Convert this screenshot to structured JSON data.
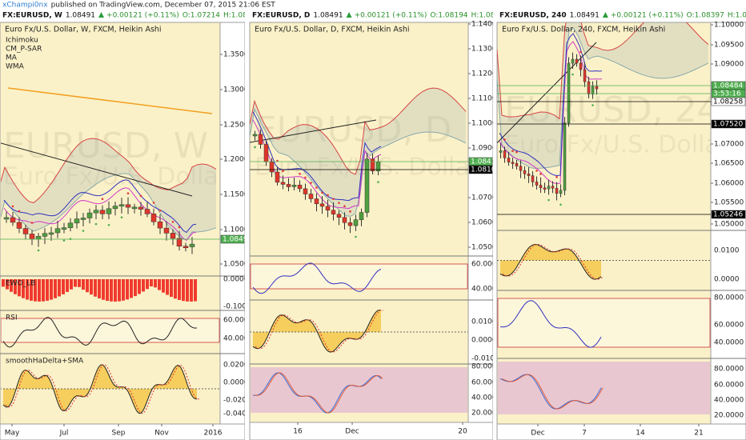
{
  "header": {
    "author": "xChampi0nx",
    "text": "published on TradingView.com, December 07, 2015 21:06 EST"
  },
  "panels": [
    {
      "quote": {
        "symbol": "FX:EURUSD, W",
        "last": "1.08491",
        "change": "+0.00121 (+0.11%)",
        "open": "O:1.07214",
        "high": "H:1.08860",
        "low": "L:1.07214",
        "close": "C:1.08"
      },
      "title": "Euro Fx/U.S. Dollar, W, FXCM, Heikin Ashi",
      "studies": [
        "Ichimoku",
        "CM_P-SAR",
        "MA",
        "WMA"
      ],
      "watermark": {
        "symbol": "EURUSD, W",
        "description": "Euro Fx/U.S. Dollar"
      },
      "price_axis": [
        "1.35000",
        "1.30000",
        "1.25000",
        "1.20000",
        "1.15000",
        "1.10000",
        "1.05000"
      ],
      "price_labels": [
        "1.08499"
      ],
      "panes": [
        {
          "name": "EWO_LB",
          "ticks": [
            "0.0000",
            "-0.1000"
          ]
        },
        {
          "name": "RSI",
          "ticks": [
            "60.0000",
            "40.0000"
          ]
        },
        {
          "name": "smoothHaDelta+SMA",
          "ticks": [
            "0.0200",
            "0.0000",
            "-0.0200",
            "-0.0400"
          ]
        }
      ],
      "time_axis": [
        "May",
        "Jul",
        "Sep",
        "Nov",
        "2016"
      ]
    },
    {
      "quote": {
        "symbol": "FX:EURUSD, D",
        "last": "1.08491",
        "change": "+0.00121 (+0.11%)",
        "open": "O:1.08194",
        "high": "H:1.08515",
        "low": "L:1.08194",
        "close": "C:1.08"
      },
      "title": "Euro Fx/U.S. Dollar, D, FXCM, Heikin Ashi",
      "watermark": {
        "symbol": "EURUSD, D",
        "description": "Euro Fx/U.S. Dollar"
      },
      "price_axis": [
        "1.14000",
        "1.13000",
        "1.12000",
        "1.11000",
        "1.10000",
        "1.09000",
        "1.07000",
        "1.06000",
        "1.05000"
      ],
      "price_labels": [
        "1.08419",
        "1.08105"
      ],
      "panes": [
        {
          "ticks": [
            "60.0000",
            "40.0000"
          ]
        },
        {
          "ticks": [
            "0.0100",
            "0.0000",
            "-0.0100"
          ]
        },
        {
          "ticks": [
            "80.0000",
            "60.0000",
            "40.0000",
            "20.0000"
          ]
        }
      ],
      "time_axis": [
        "16",
        "Dec",
        "20"
      ]
    },
    {
      "quote": {
        "symbol": "FX:EURUSD, 240",
        "last": "1.08491",
        "change": "+0.00121 (+0.11%)",
        "open": "O:1.08397",
        "high": "H:1.08515",
        "low": "L:1.08397",
        "close": "C:1.08"
      },
      "title": "Euro Fx/U.S. Dollar, 240, FXCM, Heikin Ashi",
      "watermark": {
        "symbol": "EURUSD, 240",
        "description": "Euro Fx/U.S. Dollar"
      },
      "price_axis": [
        "1.10000",
        "1.09500",
        "1.09000",
        "1.07000",
        "1.06500",
        "1.06000",
        "1.05500",
        "1.05000"
      ],
      "price_labels": [
        "1.08484",
        "3:53:16",
        "1.08258",
        "1.07520",
        "1.05246"
      ],
      "panes": [
        {
          "ticks": [
            "0.0100",
            "0.0000"
          ]
        },
        {
          "ticks": [
            "80.0000",
            "60.0000",
            "40.0000"
          ]
        },
        {
          "ticks": [
            "80.0000",
            "60.0000",
            "40.0000",
            "20.0000"
          ]
        }
      ],
      "time_axis": [
        "Dec",
        "7",
        "14",
        "21"
      ]
    }
  ]
}
